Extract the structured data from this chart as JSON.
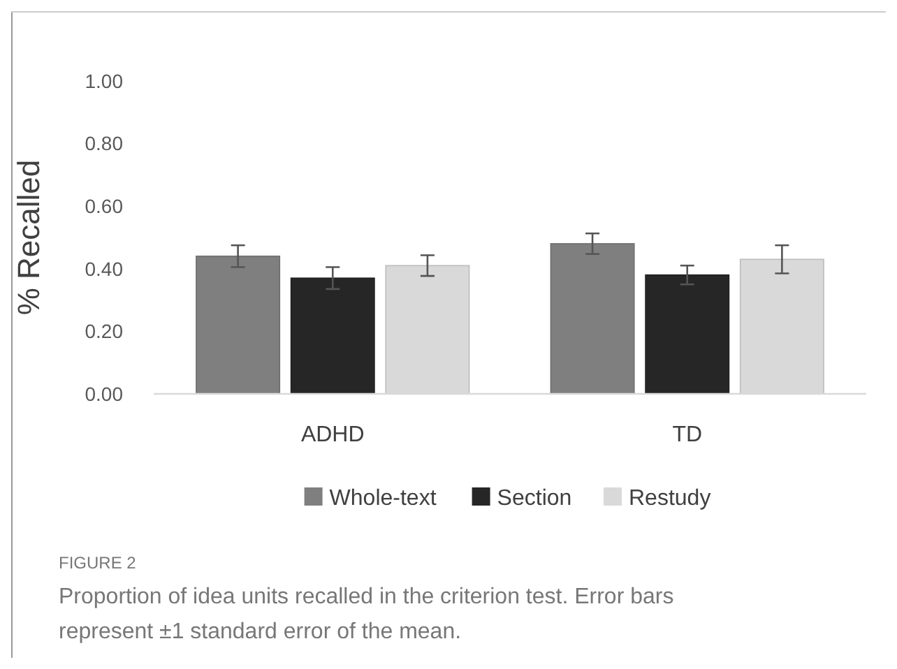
{
  "chart_data": {
    "type": "bar",
    "ylabel": "% Recalled",
    "categories": [
      "ADHD",
      "TD"
    ],
    "series": [
      {
        "name": "Whole-text",
        "color": "#7f7f7f",
        "values": [
          0.44,
          0.48
        ],
        "errors": [
          0.035,
          0.033
        ]
      },
      {
        "name": "Section",
        "color": "#262626",
        "values": [
          0.37,
          0.38
        ],
        "errors": [
          0.035,
          0.03
        ]
      },
      {
        "name": "Restudy",
        "color": "#d9d9d9",
        "values": [
          0.41,
          0.43
        ],
        "errors": [
          0.033,
          0.045
        ]
      }
    ],
    "ylim": [
      0,
      1
    ],
    "yticks": [
      {
        "value": 0,
        "label": "0.00"
      },
      {
        "value": 0.2,
        "label": "0.20"
      },
      {
        "value": 0.4,
        "label": "0.40"
      },
      {
        "value": 0.6,
        "label": "0.60"
      },
      {
        "value": 0.8,
        "label": "0.80"
      },
      {
        "value": 1,
        "label": "1.00"
      }
    ],
    "grid": false,
    "legend": "bottom",
    "annotations": [
      "FIGURE 2",
      "Proportion of idea units recalled in the criterion test. Error bars represent ±1 standard error of the mean."
    ]
  }
}
